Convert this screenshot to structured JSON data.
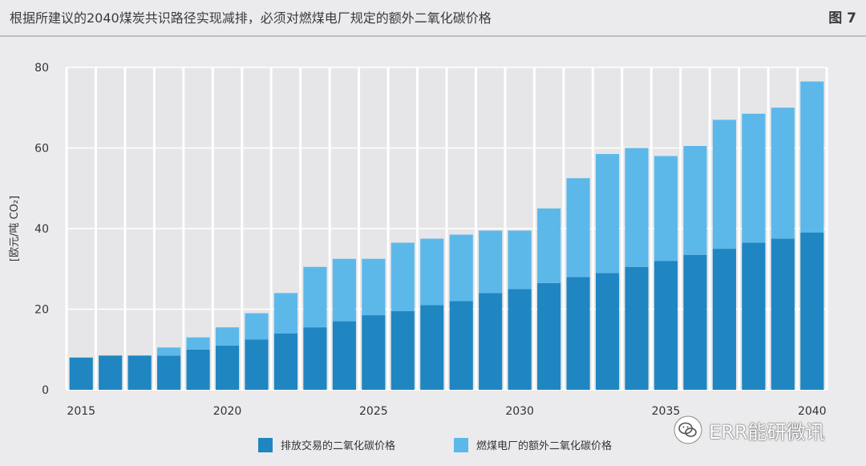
{
  "header": {
    "title": "根据所建议的2040煤炭共识路径实现减排，必须对燃煤电厂规定的额外二氧化碳价格",
    "figure_label": "图 7"
  },
  "watermark": {
    "text": "ERR能研微讯"
  },
  "colors": {
    "emission": "#1f86c1",
    "extra": "#5db8ea",
    "background": "#ebebed",
    "plot_bg": "#e6e6e8"
  },
  "chart_data": {
    "type": "bar",
    "stacked": true,
    "categories": [
      "2015",
      "2016",
      "2017",
      "2018",
      "2019",
      "2020",
      "2021",
      "2022",
      "2023",
      "2024",
      "2025",
      "2026",
      "2027",
      "2028",
      "2029",
      "2030",
      "2031",
      "2032",
      "2033",
      "2034",
      "2035",
      "2036",
      "2037",
      "2038",
      "2039",
      "2040"
    ],
    "x_tick_labels": [
      "2015",
      "2020",
      "2025",
      "2030",
      "2035",
      "2040"
    ],
    "series": [
      {
        "name": "排放交易的二氧化碳价格",
        "values": [
          8,
          8.5,
          8.5,
          8.5,
          10,
          11,
          12.5,
          14,
          15.5,
          17,
          18.5,
          19.5,
          21,
          22,
          24,
          25,
          26.5,
          28,
          29,
          30.5,
          32,
          33.5,
          35,
          36.5,
          37.5,
          39
        ]
      },
      {
        "name": "燃煤电厂的额外二氧化碳价格",
        "values": [
          0,
          0,
          0,
          2,
          3,
          4.5,
          6.5,
          10,
          15,
          15.5,
          14,
          17,
          16.5,
          16.5,
          15.5,
          14.5,
          18.5,
          24.5,
          29.5,
          29.5,
          26,
          27,
          32,
          32,
          32.5,
          37.5
        ]
      }
    ],
    "ylabel": "[欧元/吨 CO₂]",
    "yticks": [
      0,
      20,
      40,
      60,
      80
    ],
    "ylim": [
      0,
      80
    ],
    "grid": true,
    "legend_position": "bottom-center"
  }
}
